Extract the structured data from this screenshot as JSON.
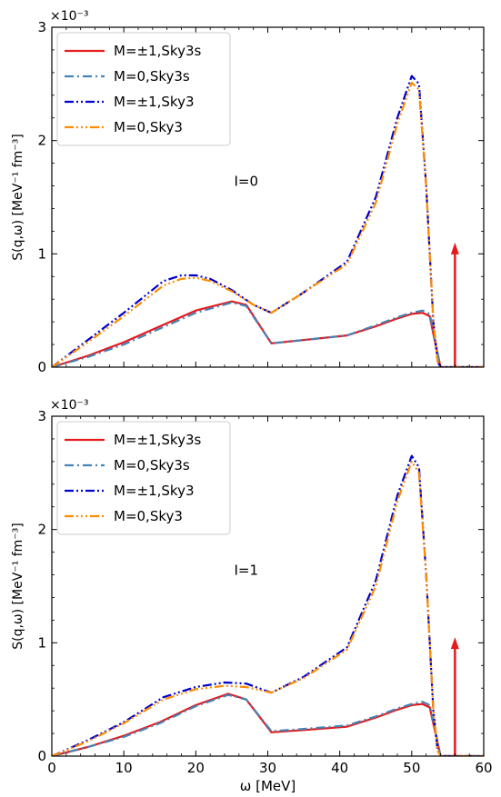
{
  "chart_data": [
    {
      "type": "line",
      "annotation": "I=0",
      "xlabel": "",
      "ylabel": "S(q,ω) [MeV⁻¹ fm⁻³]",
      "yscale_label": "×10⁻³",
      "xlim": [
        0,
        60
      ],
      "ylim": [
        0,
        3
      ],
      "xticks": [
        0,
        10,
        20,
        30,
        40,
        50,
        60
      ],
      "xticklabels": [
        "",
        "",
        "",
        "",
        "",
        "",
        ""
      ],
      "yticks": [
        0,
        1,
        2,
        3
      ],
      "yticklabels": [
        "0",
        "1",
        "2",
        "3"
      ],
      "legend_placement": "top-left",
      "grid": false,
      "series": [
        {
          "name": "M=±1,Sky3s",
          "color": "#e41a1c",
          "dash": "solid",
          "x": [
            0,
            5,
            10,
            15,
            20,
            25,
            27,
            30.5,
            35,
            41,
            45,
            48,
            50,
            51.5,
            52.5,
            53.3,
            54,
            60
          ],
          "y": [
            0,
            0.1,
            0.22,
            0.36,
            0.5,
            0.58,
            0.55,
            0.21,
            0.24,
            0.28,
            0.36,
            0.43,
            0.47,
            0.48,
            0.45,
            0.2,
            0,
            0
          ]
        },
        {
          "name": "M=0,Sky3s",
          "color": "#4682b4",
          "dash": "dashdot",
          "x": [
            0,
            5,
            10,
            15,
            20,
            25,
            27,
            30.5,
            35,
            41,
            45,
            48,
            50,
            51.5,
            52.5,
            53.3,
            54,
            60
          ],
          "y": [
            0,
            0.09,
            0.2,
            0.34,
            0.48,
            0.57,
            0.54,
            0.21,
            0.24,
            0.28,
            0.37,
            0.44,
            0.48,
            0.5,
            0.47,
            0.22,
            0,
            0
          ]
        },
        {
          "name": "M=±1,Sky3",
          "color": "#0000cd",
          "dash": "dashdotdot",
          "x": [
            0,
            5,
            10,
            15.5,
            18,
            20,
            22,
            25,
            28,
            30.5,
            35,
            41,
            45,
            48,
            50,
            51,
            52,
            53,
            53.6,
            54,
            60
          ],
          "y": [
            0,
            0.24,
            0.48,
            0.76,
            0.81,
            0.81,
            0.78,
            0.68,
            0.55,
            0.48,
            0.66,
            0.93,
            1.5,
            2.2,
            2.57,
            2.5,
            1.6,
            0.4,
            0.05,
            0,
            0
          ]
        },
        {
          "name": "M=0,Sky3",
          "color": "#ff8c00",
          "dash": "dashdotdotdot",
          "x": [
            0,
            5,
            10,
            15.5,
            18,
            20,
            22,
            25,
            28,
            30.5,
            35,
            41,
            45,
            48,
            50,
            51,
            52,
            53,
            53.6,
            54,
            60
          ],
          "y": [
            0,
            0.22,
            0.45,
            0.72,
            0.78,
            0.79,
            0.76,
            0.67,
            0.55,
            0.48,
            0.66,
            0.91,
            1.45,
            2.15,
            2.51,
            2.45,
            1.6,
            0.4,
            0.05,
            0,
            0
          ]
        }
      ],
      "arrow": {
        "x": 56,
        "y_from": 0,
        "y_to": 1.1,
        "color": "#e41a1c"
      }
    },
    {
      "type": "line",
      "annotation": "I=1",
      "xlabel": "ω [MeV]",
      "ylabel": "S(q,ω) [MeV⁻¹ fm⁻³]",
      "yscale_label": "×10⁻³",
      "xlim": [
        0,
        60
      ],
      "ylim": [
        0,
        3
      ],
      "xticks": [
        0,
        10,
        20,
        30,
        40,
        50,
        60
      ],
      "xticklabels": [
        "0",
        "10",
        "20",
        "30",
        "40",
        "50",
        "60"
      ],
      "yticks": [
        0,
        1,
        2,
        3
      ],
      "yticklabels": [
        "0",
        "1",
        "2",
        "3"
      ],
      "legend_placement": "top-left",
      "grid": false,
      "series": [
        {
          "name": "M=±1,Sky3s",
          "color": "#e41a1c",
          "dash": "solid",
          "x": [
            0,
            5,
            10,
            15,
            20,
            24.5,
            27,
            30.5,
            35,
            41,
            45,
            48,
            50,
            51.5,
            52.5,
            53.3,
            54,
            60
          ],
          "y": [
            0,
            0.08,
            0.18,
            0.3,
            0.45,
            0.55,
            0.5,
            0.21,
            0.23,
            0.26,
            0.34,
            0.41,
            0.45,
            0.46,
            0.43,
            0.2,
            0,
            0
          ]
        },
        {
          "name": "M=0,Sky3s",
          "color": "#4682b4",
          "dash": "dashdot",
          "x": [
            0,
            5,
            10,
            15,
            20,
            24.5,
            27,
            30.5,
            35,
            41,
            45,
            48,
            50,
            51.5,
            52.5,
            53.3,
            54,
            60
          ],
          "y": [
            0,
            0.08,
            0.17,
            0.29,
            0.44,
            0.54,
            0.5,
            0.22,
            0.24,
            0.27,
            0.35,
            0.42,
            0.46,
            0.48,
            0.45,
            0.22,
            0,
            0
          ]
        },
        {
          "name": "M=±1,Sky3",
          "color": "#0000cd",
          "dash": "dashdotdot",
          "x": [
            0,
            5,
            10,
            15.5,
            20,
            24,
            27,
            30.5,
            35,
            41,
            45,
            48,
            50,
            51,
            52,
            53,
            53.6,
            54,
            60
          ],
          "y": [
            0,
            0.14,
            0.3,
            0.52,
            0.61,
            0.65,
            0.64,
            0.56,
            0.7,
            0.96,
            1.55,
            2.3,
            2.65,
            2.55,
            1.6,
            0.4,
            0.05,
            0,
            0
          ]
        },
        {
          "name": "M=0,Sky3",
          "color": "#ff8c00",
          "dash": "dashdotdotdot",
          "x": [
            0,
            5,
            10,
            15.5,
            20,
            24,
            27,
            30.5,
            35,
            41,
            45,
            48,
            50,
            51,
            52,
            53,
            53.6,
            54,
            60
          ],
          "y": [
            0,
            0.13,
            0.29,
            0.5,
            0.59,
            0.62,
            0.61,
            0.56,
            0.69,
            0.94,
            1.5,
            2.25,
            2.6,
            2.5,
            1.6,
            0.4,
            0.05,
            0,
            0
          ]
        }
      ],
      "arrow": {
        "x": 56,
        "y_from": 0,
        "y_to": 1.05,
        "color": "#e41a1c"
      }
    }
  ]
}
